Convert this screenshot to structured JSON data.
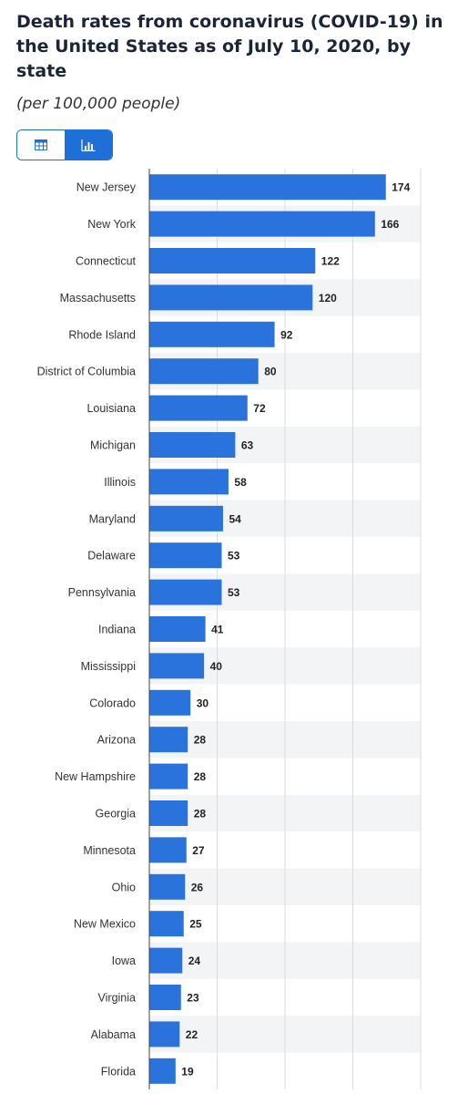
{
  "header": {
    "title": "Death rates from coronavirus (COVID-19) in the United States as of July 10, 2020, by state",
    "subtitle": "(per 100,000 people)"
  },
  "view_toggle": {
    "table_icon": "table-icon",
    "chart_icon": "bar-chart-icon",
    "active": "chart",
    "accent_color": "#1f6fd8"
  },
  "chart_data": {
    "type": "bar",
    "orientation": "horizontal",
    "categories": [
      "New Jersey",
      "New York",
      "Connecticut",
      "Massachusetts",
      "Rhode Island",
      "District of Columbia",
      "Louisiana",
      "Michigan",
      "Illinois",
      "Maryland",
      "Delaware",
      "Pennsylvania",
      "Indiana",
      "Mississippi",
      "Colorado",
      "Arizona",
      "New Hampshire",
      "Georgia",
      "Minnesota",
      "Ohio",
      "New Mexico",
      "Iowa",
      "Virginia",
      "Alabama",
      "Florida"
    ],
    "values": [
      174,
      166,
      122,
      120,
      92,
      80,
      72,
      63,
      58,
      54,
      53,
      53,
      41,
      40,
      30,
      28,
      28,
      28,
      27,
      26,
      25,
      24,
      23,
      22,
      19
    ],
    "xlim": [
      0,
      200
    ],
    "grid": true,
    "bar_color": "#2a73dd",
    "data_labels": true
  }
}
